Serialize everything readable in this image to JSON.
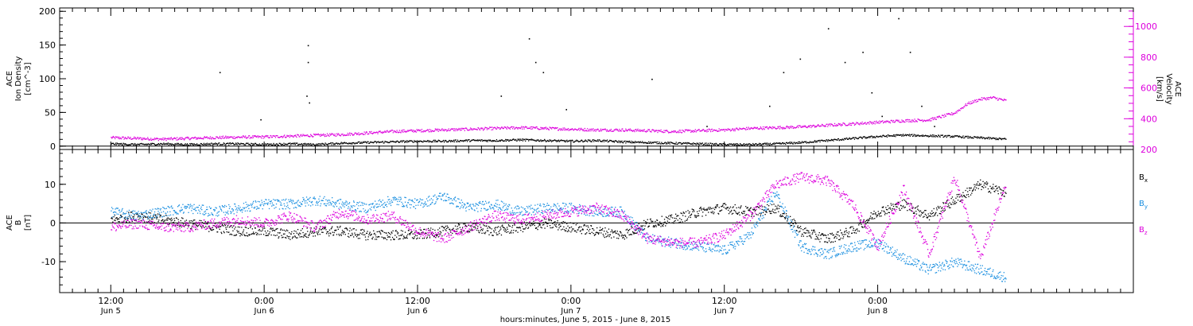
{
  "chart_data": [
    {
      "type": "scatter",
      "panel": "top",
      "left_axis": {
        "label_lines": [
          "ACE",
          "Ion Density",
          "[cm^-3]"
        ],
        "ylim": [
          -5,
          205
        ],
        "ticks": [
          0,
          50,
          100,
          150,
          200
        ]
      },
      "right_axis": {
        "label_lines": [
          "ACE",
          "Velocity",
          "[km/s]"
        ],
        "ylim": [
          200,
          1120
        ],
        "ticks": [
          200,
          400,
          600,
          800,
          1000
        ],
        "color": "#dd00dd"
      },
      "series": [
        {
          "key": "density",
          "axis": "left",
          "color": "#000000",
          "x": [
            0,
            2,
            4,
            6,
            8,
            10,
            12,
            14,
            16,
            18,
            20,
            22,
            24,
            26,
            28,
            30,
            32,
            34,
            36,
            38,
            40,
            42,
            44,
            46,
            48,
            50,
            52,
            54,
            56,
            58,
            60,
            62,
            64,
            66,
            68,
            70
          ],
          "y": [
            4,
            3,
            4,
            3,
            4,
            4,
            3,
            4,
            3,
            5,
            6,
            7,
            8,
            8,
            9,
            9,
            10,
            9,
            8,
            9,
            7,
            6,
            5,
            4,
            3,
            3,
            4,
            6,
            9,
            12,
            15,
            17,
            16,
            15,
            13,
            11
          ],
          "spikes": [
            [
              8.5,
              110
            ],
            [
              11.7,
              40
            ],
            [
              15.4,
              150
            ],
            [
              15.4,
              125
            ],
            [
              15.3,
              75
            ],
            [
              15.5,
              65
            ],
            [
              30.5,
              75
            ],
            [
              32.7,
              160
            ],
            [
              33.2,
              125
            ],
            [
              33.8,
              110
            ],
            [
              35.6,
              55
            ],
            [
              42.3,
              100
            ],
            [
              46.6,
              30
            ],
            [
              51.5,
              60
            ],
            [
              52.6,
              110
            ],
            [
              53.9,
              130
            ],
            [
              56.1,
              175
            ],
            [
              57.4,
              125
            ],
            [
              58.8,
              140
            ],
            [
              59.5,
              80
            ],
            [
              60.3,
              45
            ],
            [
              61.6,
              190
            ],
            [
              62.5,
              140
            ],
            [
              63.4,
              60
            ],
            [
              64.4,
              30
            ]
          ]
        },
        {
          "key": "velocity",
          "axis": "right",
          "color": "#dd00dd",
          "x": [
            0,
            2,
            4,
            6,
            8,
            10,
            12,
            14,
            16,
            18,
            20,
            22,
            24,
            26,
            28,
            30,
            32,
            34,
            36,
            38,
            40,
            42,
            44,
            46,
            48,
            50,
            52,
            54,
            56,
            58,
            60,
            62,
            64,
            66,
            67,
            68,
            69,
            70
          ],
          "y": [
            280,
            275,
            270,
            275,
            280,
            283,
            285,
            290,
            295,
            300,
            310,
            320,
            325,
            330,
            335,
            340,
            345,
            340,
            335,
            330,
            330,
            325,
            320,
            325,
            330,
            340,
            345,
            350,
            360,
            370,
            380,
            390,
            395,
            440,
            500,
            530,
            540,
            520
          ]
        }
      ]
    },
    {
      "type": "scatter",
      "panel": "bottom",
      "left_axis": {
        "label_lines": [
          "ACE",
          "B",
          "[nT]"
        ],
        "ylim": [
          -18,
          19
        ],
        "ticks": [
          -10,
          0,
          10
        ]
      },
      "legend_position": "right",
      "series": [
        {
          "key": "bx",
          "name": "B",
          "subscript": "x",
          "color": "#000000",
          "x": [
            0,
            2,
            4,
            6,
            8,
            10,
            12,
            14,
            16,
            18,
            20,
            22,
            24,
            26,
            28,
            30,
            32,
            34,
            36,
            38,
            40,
            42,
            44,
            46,
            48,
            50,
            52,
            54,
            56,
            58,
            60,
            62,
            64,
            66,
            68,
            70
          ],
          "y": [
            1,
            2,
            1,
            0,
            -1,
            -2,
            -2,
            -3,
            -2,
            -2,
            -3,
            -3,
            -3,
            -2,
            -1,
            -2,
            -1,
            0,
            -1,
            -2,
            -3,
            0,
            1,
            3,
            4,
            3,
            4,
            -2,
            -4,
            -2,
            3,
            5,
            2,
            6,
            10,
            8
          ]
        },
        {
          "key": "by",
          "name": "B",
          "subscript": "y",
          "color": "#1a8fe0",
          "x": [
            0,
            2,
            4,
            6,
            8,
            10,
            12,
            14,
            16,
            18,
            20,
            22,
            24,
            26,
            28,
            30,
            32,
            34,
            36,
            38,
            40,
            42,
            44,
            46,
            48,
            50,
            52,
            54,
            56,
            58,
            60,
            62,
            64,
            66,
            68,
            70
          ],
          "y": [
            3,
            2,
            3,
            4,
            3,
            4,
            5,
            5,
            6,
            5,
            4,
            6,
            5,
            7,
            4,
            5,
            3,
            4,
            4,
            3,
            3,
            -4,
            -5,
            -6,
            -7,
            -3,
            8,
            -6,
            -8,
            -6,
            -5,
            -9,
            -12,
            -10,
            -12,
            -14
          ]
        },
        {
          "key": "bz",
          "name": "B",
          "subscript": "z",
          "color": "#dd00dd",
          "x": [
            0,
            2,
            4,
            6,
            8,
            10,
            12,
            14,
            16,
            18,
            20,
            22,
            24,
            26,
            28,
            30,
            32,
            34,
            36,
            38,
            40,
            42,
            44,
            46,
            48,
            50,
            52,
            54,
            56,
            58,
            60,
            62,
            64,
            66,
            68,
            70
          ],
          "y": [
            -1,
            0,
            -1,
            -1,
            0,
            1,
            0,
            2,
            -1,
            3,
            1,
            2,
            -2,
            -4,
            -1,
            2,
            1,
            2,
            3,
            4,
            2,
            -4,
            -5,
            -5,
            -3,
            2,
            10,
            12,
            11,
            5,
            -6,
            9,
            -8,
            12,
            -9,
            10
          ]
        }
      ]
    }
  ],
  "x_axis": {
    "hours_range": [
      -4,
      80
    ],
    "ticks": [
      {
        "h": 0,
        "time": "12:00",
        "day": "Jun 5"
      },
      {
        "h": 12,
        "time": "0:00",
        "day": "Jun 6"
      },
      {
        "h": 24,
        "time": "12:00",
        "day": "Jun 6"
      },
      {
        "h": 36,
        "time": "0:00",
        "day": "Jun 7"
      },
      {
        "h": 48,
        "time": "12:00",
        "day": "Jun 7"
      },
      {
        "h": 60,
        "time": "0:00",
        "day": "Jun 8"
      }
    ],
    "title": "hours:minutes, June  5, 2015 - June  8, 2015"
  }
}
